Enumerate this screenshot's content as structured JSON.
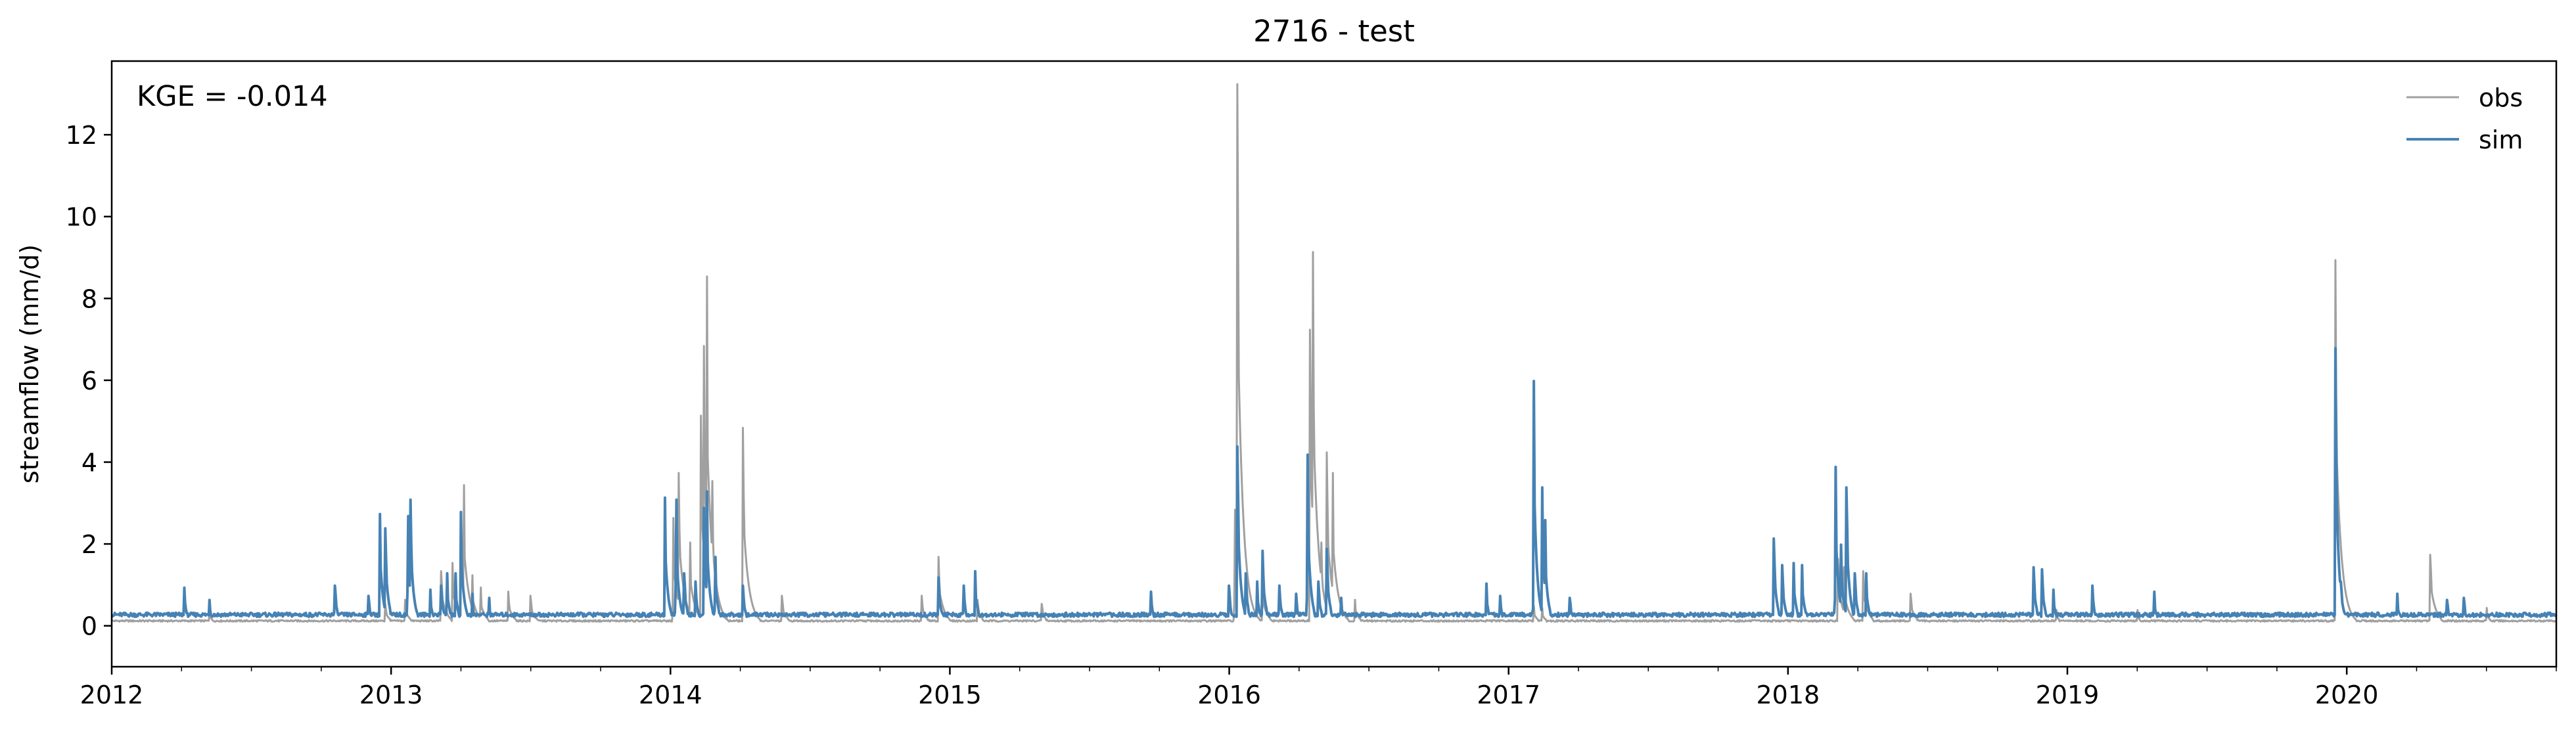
{
  "chart_data": {
    "type": "line",
    "title": "2716 - test",
    "xlabel": "",
    "ylabel": "streamflow (mm/d)",
    "annotation": "KGE = -0.014",
    "legend_position": "top-right",
    "grid": false,
    "xlim": [
      2012.0,
      2020.75
    ],
    "ylim": [
      -1.0,
      13.8
    ],
    "x_ticks": [
      2012,
      2013,
      2014,
      2015,
      2016,
      2017,
      2018,
      2019,
      2020
    ],
    "x_tick_labels": [
      "2012",
      "2013",
      "2014",
      "2015",
      "2016",
      "2017",
      "2018",
      "2019",
      "2020"
    ],
    "y_ticks": [
      0,
      2,
      4,
      6,
      8,
      10,
      12
    ],
    "y_tick_labels": [
      "0",
      "2",
      "4",
      "6",
      "8",
      "10",
      "12"
    ],
    "baseline": {
      "obs": 0.12,
      "sim": 0.27
    },
    "series": [
      {
        "name": "obs",
        "color": "#a0a0a0",
        "peaks": [
          {
            "x": 2012.35,
            "y": 0.35
          },
          {
            "x": 2012.98,
            "y": 0.5
          },
          {
            "x": 2013.05,
            "y": 0.6
          },
          {
            "x": 2013.18,
            "y": 1.3
          },
          {
            "x": 2013.22,
            "y": 1.5
          },
          {
            "x": 2013.25,
            "y": 2.5
          },
          {
            "x": 2013.26,
            "y": 3.4
          },
          {
            "x": 2013.29,
            "y": 1.2
          },
          {
            "x": 2013.32,
            "y": 0.9
          },
          {
            "x": 2013.42,
            "y": 0.8
          },
          {
            "x": 2013.5,
            "y": 0.7
          },
          {
            "x": 2014.01,
            "y": 2.6
          },
          {
            "x": 2014.03,
            "y": 3.7
          },
          {
            "x": 2014.07,
            "y": 2.0
          },
          {
            "x": 2014.11,
            "y": 5.1
          },
          {
            "x": 2014.12,
            "y": 6.8
          },
          {
            "x": 2014.13,
            "y": 8.5
          },
          {
            "x": 2014.15,
            "y": 3.5
          },
          {
            "x": 2014.26,
            "y": 4.8
          },
          {
            "x": 2014.4,
            "y": 0.7
          },
          {
            "x": 2014.9,
            "y": 0.7
          },
          {
            "x": 2014.96,
            "y": 1.65
          },
          {
            "x": 2015.1,
            "y": 0.6
          },
          {
            "x": 2015.33,
            "y": 0.5
          },
          {
            "x": 2016.02,
            "y": 2.8
          },
          {
            "x": 2016.03,
            "y": 13.2
          },
          {
            "x": 2016.05,
            "y": 2.0
          },
          {
            "x": 2016.12,
            "y": 1.0
          },
          {
            "x": 2016.29,
            "y": 7.2
          },
          {
            "x": 2016.3,
            "y": 9.1
          },
          {
            "x": 2016.33,
            "y": 2.0
          },
          {
            "x": 2016.35,
            "y": 4.2
          },
          {
            "x": 2016.37,
            "y": 3.7
          },
          {
            "x": 2016.45,
            "y": 0.6
          },
          {
            "x": 2017.09,
            "y": 0.45
          },
          {
            "x": 2017.12,
            "y": 0.4
          },
          {
            "x": 2018.18,
            "y": 1.6
          },
          {
            "x": 2018.2,
            "y": 1.4
          },
          {
            "x": 2018.27,
            "y": 1.3
          },
          {
            "x": 2018.44,
            "y": 0.75
          },
          {
            "x": 2018.96,
            "y": 0.35
          },
          {
            "x": 2019.25,
            "y": 0.35
          },
          {
            "x": 2019.96,
            "y": 8.9
          },
          {
            "x": 2019.98,
            "y": 1.5
          },
          {
            "x": 2020.3,
            "y": 1.7
          },
          {
            "x": 2020.5,
            "y": 0.4
          }
        ]
      },
      {
        "name": "sim",
        "color": "#4682b4",
        "peaks": [
          {
            "x": 2012.26,
            "y": 0.85
          },
          {
            "x": 2012.35,
            "y": 0.55
          },
          {
            "x": 2012.8,
            "y": 0.9
          },
          {
            "x": 2012.92,
            "y": 0.65
          },
          {
            "x": 2012.96,
            "y": 2.65
          },
          {
            "x": 2012.98,
            "y": 2.3
          },
          {
            "x": 2013.06,
            "y": 2.6
          },
          {
            "x": 2013.07,
            "y": 3.0
          },
          {
            "x": 2013.14,
            "y": 0.8
          },
          {
            "x": 2013.18,
            "y": 0.9
          },
          {
            "x": 2013.2,
            "y": 1.2
          },
          {
            "x": 2013.23,
            "y": 1.2
          },
          {
            "x": 2013.25,
            "y": 2.7
          },
          {
            "x": 2013.29,
            "y": 0.7
          },
          {
            "x": 2013.35,
            "y": 0.6
          },
          {
            "x": 2013.98,
            "y": 3.05
          },
          {
            "x": 2014.02,
            "y": 3.0
          },
          {
            "x": 2014.05,
            "y": 1.2
          },
          {
            "x": 2014.09,
            "y": 1.0
          },
          {
            "x": 2014.12,
            "y": 2.8
          },
          {
            "x": 2014.13,
            "y": 3.2
          },
          {
            "x": 2014.16,
            "y": 1.6
          },
          {
            "x": 2014.26,
            "y": 0.9
          },
          {
            "x": 2014.96,
            "y": 1.1
          },
          {
            "x": 2015.05,
            "y": 0.9
          },
          {
            "x": 2015.09,
            "y": 1.25
          },
          {
            "x": 2015.72,
            "y": 0.75
          },
          {
            "x": 2016.0,
            "y": 0.9
          },
          {
            "x": 2016.03,
            "y": 4.3
          },
          {
            "x": 2016.06,
            "y": 1.2
          },
          {
            "x": 2016.1,
            "y": 1.0
          },
          {
            "x": 2016.12,
            "y": 1.75
          },
          {
            "x": 2016.18,
            "y": 0.9
          },
          {
            "x": 2016.24,
            "y": 0.7
          },
          {
            "x": 2016.28,
            "y": 4.1
          },
          {
            "x": 2016.32,
            "y": 1.0
          },
          {
            "x": 2016.35,
            "y": 1.8
          },
          {
            "x": 2016.4,
            "y": 0.6
          },
          {
            "x": 2016.92,
            "y": 0.95
          },
          {
            "x": 2016.97,
            "y": 0.65
          },
          {
            "x": 2017.09,
            "y": 5.9
          },
          {
            "x": 2017.12,
            "y": 3.3
          },
          {
            "x": 2017.13,
            "y": 2.5
          },
          {
            "x": 2017.22,
            "y": 0.6
          },
          {
            "x": 2017.95,
            "y": 2.05
          },
          {
            "x": 2017.98,
            "y": 1.4
          },
          {
            "x": 2018.02,
            "y": 1.45
          },
          {
            "x": 2018.05,
            "y": 1.4
          },
          {
            "x": 2018.17,
            "y": 3.8
          },
          {
            "x": 2018.19,
            "y": 1.9
          },
          {
            "x": 2018.21,
            "y": 3.3
          },
          {
            "x": 2018.24,
            "y": 1.2
          },
          {
            "x": 2018.28,
            "y": 1.2
          },
          {
            "x": 2018.88,
            "y": 1.35
          },
          {
            "x": 2018.91,
            "y": 1.3
          },
          {
            "x": 2018.95,
            "y": 0.8
          },
          {
            "x": 2019.09,
            "y": 0.9
          },
          {
            "x": 2019.31,
            "y": 0.75
          },
          {
            "x": 2019.96,
            "y": 6.7
          },
          {
            "x": 2019.98,
            "y": 1.0
          },
          {
            "x": 2020.18,
            "y": 0.7
          },
          {
            "x": 2020.36,
            "y": 0.55
          },
          {
            "x": 2020.42,
            "y": 0.6
          }
        ]
      }
    ]
  }
}
